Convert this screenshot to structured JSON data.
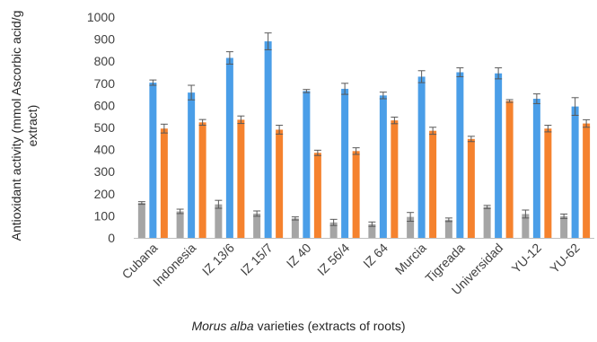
{
  "chart_data": {
    "type": "bar",
    "ylabel_line1": "Antioxidant activity (mmol Ascorbic acid/g",
    "ylabel_line2": "extract)",
    "xlabel_italic": "Morus alba",
    "xlabel_rest": " varieties (extracts of roots)",
    "ylim": [
      0,
      1000
    ],
    "yticks": [
      0,
      100,
      200,
      300,
      400,
      500,
      600,
      700,
      800,
      900,
      1000
    ],
    "grid": false,
    "categories": [
      "Cubana",
      "Indonesia",
      "IZ 13/6",
      "IZ 15/7",
      "IZ 40",
      "IZ 56/4",
      "IZ 64",
      "Murcia",
      "Tigreada",
      "Universidad",
      "YU-12",
      "YU-62"
    ],
    "series": [
      {
        "color": "#a5a5a5",
        "values": [
          158,
          120,
          152,
          110,
          88,
          70,
          62,
          95,
          82,
          140,
          108,
          98
        ],
        "errors": [
          6,
          10,
          18,
          12,
          7,
          14,
          10,
          20,
          8,
          7,
          18,
          10
        ]
      },
      {
        "color": "#4a9ee8",
        "values": [
          703,
          658,
          815,
          890,
          665,
          675,
          645,
          730,
          750,
          745,
          630,
          595
        ],
        "errors": [
          12,
          33,
          28,
          38,
          7,
          25,
          15,
          27,
          20,
          25,
          22,
          40
        ]
      },
      {
        "color": "#f5822e",
        "values": [
          495,
          523,
          535,
          490,
          385,
          393,
          532,
          485,
          448,
          620,
          495,
          518
        ],
        "errors": [
          20,
          13,
          17,
          20,
          12,
          15,
          15,
          16,
          12,
          6,
          15,
          17
        ]
      }
    ]
  }
}
